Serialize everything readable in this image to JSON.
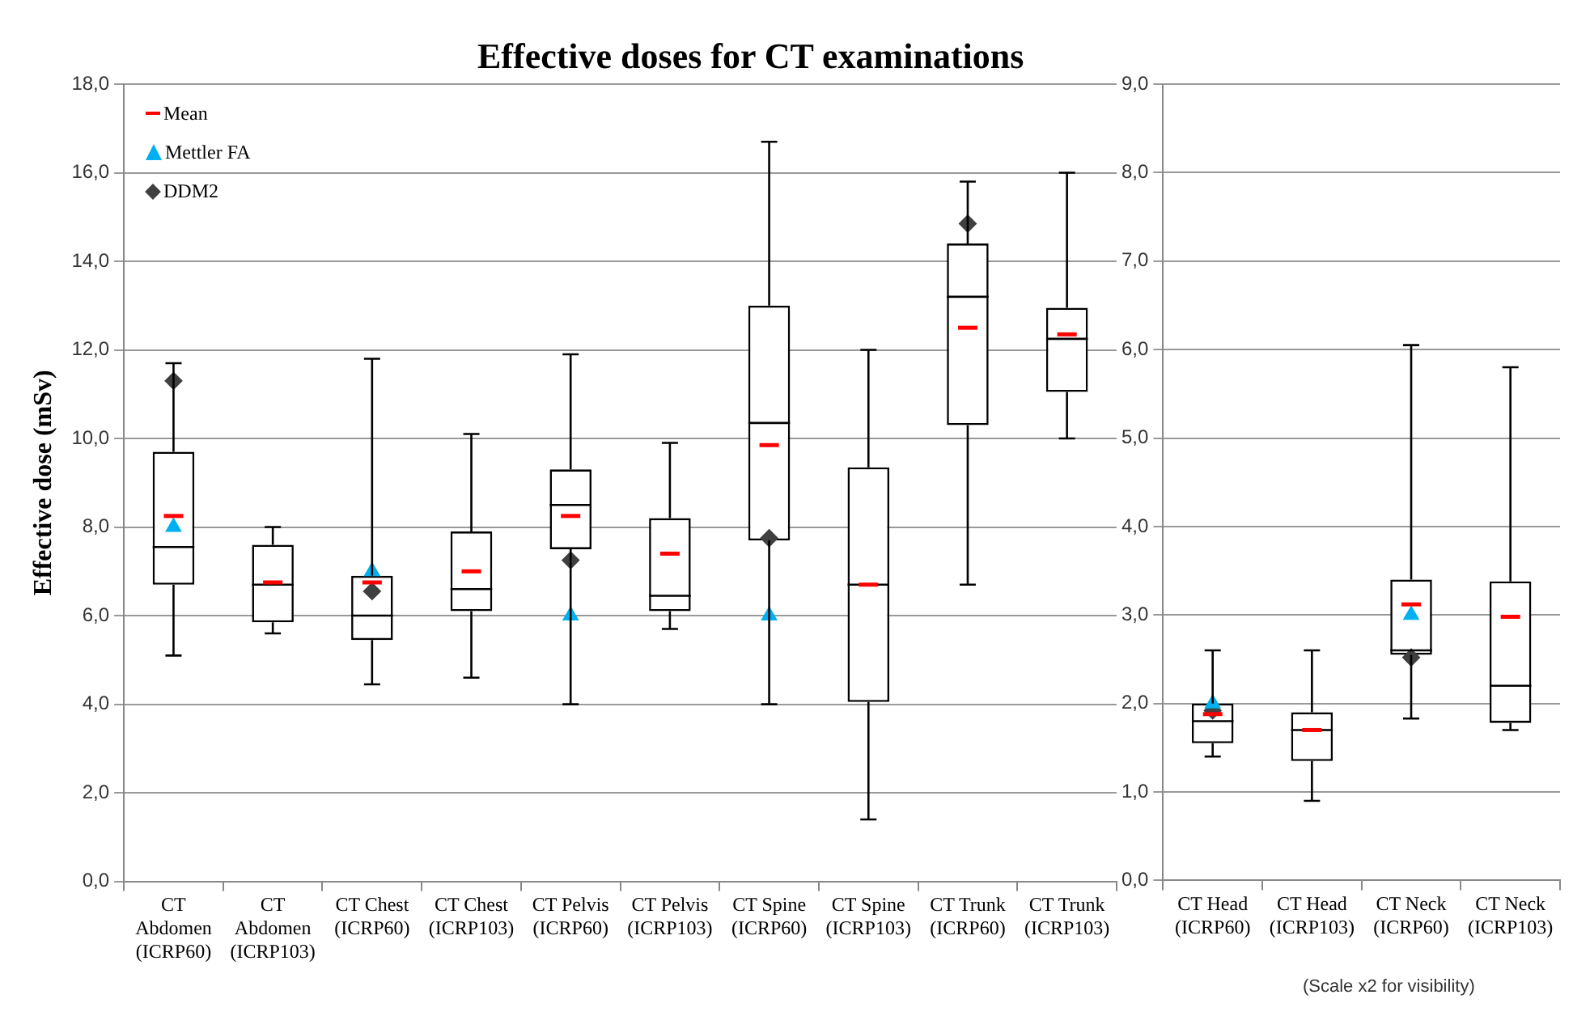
{
  "chart_data": [
    {
      "type": "box",
      "title": "Effective doses for CT examinations",
      "ylabel": "Effective dose (mSv)",
      "categories": [
        "CT Abdomen (ICRP60)",
        "CT Abdomen (ICRP103)",
        "CT Chest (ICRP60)",
        "CT Chest (ICRP103)",
        "CT Pelvis (ICRP60)",
        "CT Pelvis (ICRP103)",
        "CT Spine (ICRP60)",
        "CT Spine (ICRP103)",
        "CT Trunk (ICRP60)",
        "CT Trunk (ICRP103)"
      ],
      "boxes": [
        {
          "low": 5.1,
          "q1": 6.7,
          "median": 7.55,
          "q3": 9.7,
          "high": 11.7,
          "mean": 8.25
        },
        {
          "low": 5.6,
          "q1": 5.85,
          "median": 6.7,
          "q3": 7.6,
          "high": 8.0,
          "mean": 6.75
        },
        {
          "low": 4.45,
          "q1": 5.45,
          "median": 6.0,
          "q3": 6.9,
          "high": 11.8,
          "mean": 6.75
        },
        {
          "low": 4.6,
          "q1": 6.1,
          "median": 6.6,
          "q3": 7.9,
          "high": 10.1,
          "mean": 7.0
        },
        {
          "low": 4.0,
          "q1": 7.5,
          "median": 8.5,
          "q3": 9.3,
          "high": 11.9,
          "mean": 8.25
        },
        {
          "low": 5.7,
          "q1": 6.1,
          "median": 6.45,
          "q3": 8.2,
          "high": 9.9,
          "mean": 7.4
        },
        {
          "low": 4.0,
          "q1": 7.7,
          "median": 10.35,
          "q3": 13.0,
          "high": 16.7,
          "mean": 9.85
        },
        {
          "low": 1.4,
          "q1": 4.05,
          "median": 6.7,
          "q3": 9.35,
          "high": 12.0,
          "mean": 6.7
        },
        {
          "low": 6.7,
          "q1": 10.3,
          "median": 13.2,
          "q3": 14.4,
          "high": 15.8,
          "mean": 12.5
        },
        {
          "low": 10.0,
          "q1": 11.05,
          "median": 12.25,
          "q3": 12.95,
          "high": 16.0,
          "mean": 12.35
        }
      ],
      "series": [
        {
          "name": "Mettler FA",
          "type": "scatter",
          "marker": "triangle",
          "color": "#00b0f0",
          "x": [
            "CT Abdomen (ICRP60)",
            "CT Chest (ICRP60)",
            "CT Pelvis (ICRP60)",
            "CT Spine (ICRP60)"
          ],
          "values": [
            8.0,
            7.0,
            6.0,
            6.0
          ]
        },
        {
          "name": "DDM2",
          "type": "scatter",
          "marker": "diamond",
          "color": "#404040",
          "x": [
            "CT Abdomen (ICRP60)",
            "CT Chest (ICRP60)",
            "CT Pelvis (ICRP60)",
            "CT Spine (ICRP60)",
            "CT Trunk (ICRP60)"
          ],
          "values": [
            11.3,
            6.55,
            7.25,
            7.75,
            14.85
          ]
        }
      ],
      "ylim": [
        0,
        18
      ],
      "yticks": [
        {
          "value": 0,
          "label": "0,0"
        },
        {
          "value": 2,
          "label": "2,0"
        },
        {
          "value": 4,
          "label": "4,0"
        },
        {
          "value": 6,
          "label": "6,0"
        },
        {
          "value": 8,
          "label": "8,0"
        },
        {
          "value": 10,
          "label": "10,0"
        },
        {
          "value": 12,
          "label": "12,0"
        },
        {
          "value": 14,
          "label": "14,0"
        },
        {
          "value": 16,
          "label": "16,0"
        },
        {
          "value": 18,
          "label": "18,0"
        }
      ],
      "grid": "y",
      "legend": "top left",
      "annotations": [
        "Mean"
      ]
    },
    {
      "type": "box",
      "categories": [
        "CT Head (ICRP60)",
        "CT Head (ICRP103)",
        "CT Neck (ICRP60)",
        "CT Neck (ICRP103)"
      ],
      "boxes": [
        {
          "low": 1.4,
          "q1": 1.55,
          "median": 1.8,
          "q3": 2.0,
          "high": 2.6,
          "mean": 1.88
        },
        {
          "low": 0.9,
          "q1": 1.35,
          "median": 1.7,
          "q3": 1.9,
          "high": 2.6,
          "mean": 1.7
        },
        {
          "low": 1.83,
          "q1": 2.55,
          "median": 2.6,
          "q3": 3.4,
          "high": 6.05,
          "mean": 3.12
        },
        {
          "low": 1.7,
          "q1": 1.78,
          "median": 2.2,
          "q3": 3.38,
          "high": 5.8,
          "mean": 2.98
        }
      ],
      "series": [
        {
          "type": "scatter",
          "marker": "triangle",
          "color": "#00b0f0",
          "x": [
            "CT Head (ICRP60)",
            "CT Neck (ICRP60)"
          ],
          "values": [
            2.0,
            3.0
          ]
        },
        {
          "type": "scatter",
          "marker": "diamond",
          "color": "#404040",
          "x": [
            "CT Head (ICRP60)",
            "CT Neck (ICRP60)"
          ],
          "values": [
            1.92,
            2.52
          ]
        }
      ],
      "ylim": [
        0,
        9
      ],
      "yticks": [
        {
          "value": 0,
          "label": "0,0"
        },
        {
          "value": 1,
          "label": "1,0"
        },
        {
          "value": 2,
          "label": "2,0"
        },
        {
          "value": 3,
          "label": "3,0"
        },
        {
          "value": 4,
          "label": "4,0"
        },
        {
          "value": 5,
          "label": "5,0"
        },
        {
          "value": 6,
          "label": "6,0"
        },
        {
          "value": 7,
          "label": "7,0"
        },
        {
          "value": 8,
          "label": "8,0"
        },
        {
          "value": 9,
          "label": "9,0"
        }
      ],
      "grid": "y",
      "annotations": [
        "(Scale x2 for visibility)"
      ]
    }
  ]
}
